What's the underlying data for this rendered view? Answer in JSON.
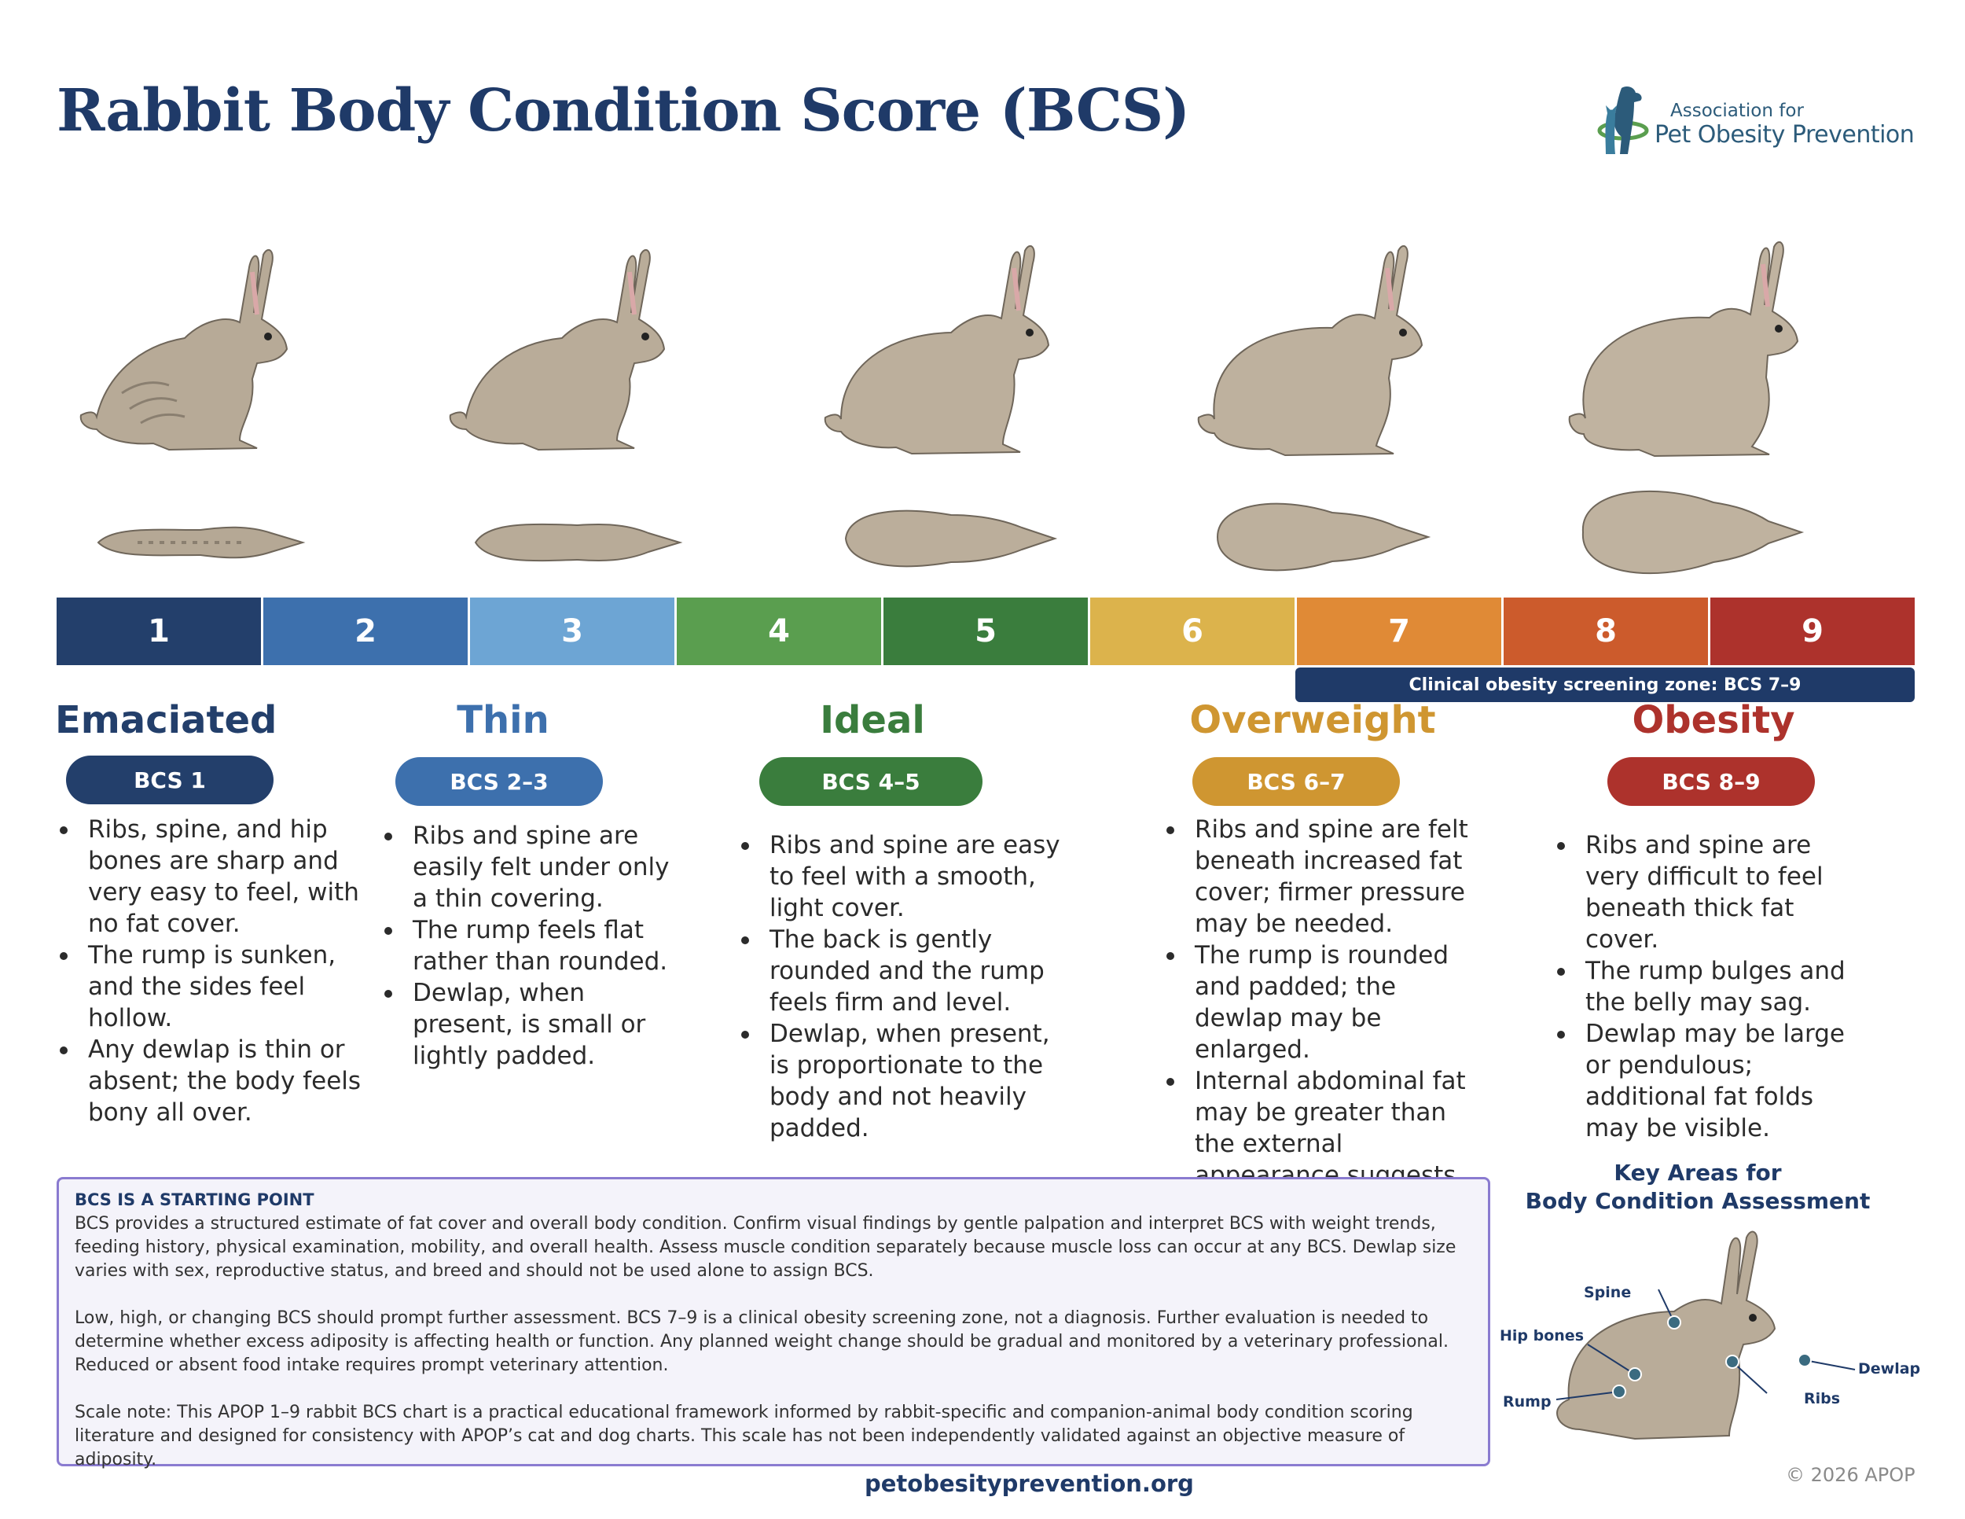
{
  "title": "Rabbit Body Condition Score (BCS)",
  "logo": {
    "line1": "Association for",
    "line2": "Pet Obesity Prevention"
  },
  "scale": [
    {
      "label": "1",
      "color": "#233f6b"
    },
    {
      "label": "2",
      "color": "#3d70ad"
    },
    {
      "label": "3",
      "color": "#6da5d4"
    },
    {
      "label": "4",
      "color": "#5a9e4f"
    },
    {
      "label": "5",
      "color": "#3a7d3d"
    },
    {
      "label": "6",
      "color": "#dcb34c"
    },
    {
      "label": "7",
      "color": "#e08a36"
    },
    {
      "label": "8",
      "color": "#cc5b2c"
    },
    {
      "label": "9",
      "color": "#ad322c"
    }
  ],
  "zone_banner": "Clinical obesity screening zone: BCS 7–9",
  "categories": [
    {
      "name": "Emaciated",
      "badge": "BCS 1",
      "color": "#233f6b",
      "bullets": [
        "Ribs, spine, and hip bones are sharp and very easy to feel, with no fat cover.",
        "The rump is sunken, and the sides feel hollow.",
        "Any dewlap is thin or absent; the body feels bony all over."
      ]
    },
    {
      "name": "Thin",
      "badge": "BCS 2–3",
      "color": "#3d70ad",
      "bullets": [
        "Ribs and spine are easily felt under only a thin covering.",
        "The rump feels flat rather than rounded.",
        "Dewlap, when present, is small or lightly padded."
      ]
    },
    {
      "name": "Ideal",
      "badge": "BCS 4–5",
      "color": "#3a7d3d",
      "bullets": [
        "Ribs and spine are easy to feel with a smooth, light cover.",
        "The back is gently rounded and the rump feels firm and level.",
        "Dewlap, when present, is proportionate to the body and not heavily padded."
      ]
    },
    {
      "name": "Overweight",
      "badge": "BCS 6–7",
      "color": "#cf9631",
      "bullets": [
        "Ribs and spine are felt beneath increased fat cover; firmer pressure may be needed.",
        "The rump is rounded and padded; the dewlap may be enlarged.",
        "Internal abdominal fat may be greater than the external appearance suggests."
      ]
    },
    {
      "name": "Obesity",
      "badge": "BCS 8–9",
      "color": "#ad322c",
      "bullets": [
        "Ribs and spine are very difficult to feel beneath thick fat cover.",
        "The rump bulges and the belly may sag.",
        "Dewlap may be large or pendulous; additional fat folds may be visible."
      ]
    }
  ],
  "note": {
    "title": "BCS IS A STARTING POINT",
    "p1": "BCS provides a structured estimate of fat cover and overall body condition. Confirm visual findings by gentle palpation and interpret BCS with weight trends, feeding history, physical examination, mobility, and overall health. Assess muscle condition separately because muscle loss can occur at any BCS. Dewlap size varies with sex, reproductive status, and breed and should not be used alone to assign BCS.",
    "p2": "Low, high, or changing BCS should prompt further assessment. BCS 7–9 is a clinical obesity screening zone, not a diagnosis. Further evaluation is needed to determine whether excess adiposity is affecting health or function. Any planned weight change should be gradual and monitored by a veterinary professional. Reduced or absent food intake requires prompt veterinary attention.",
    "p3": "Scale note: This APOP 1–9 rabbit BCS chart is a practical educational framework informed by rabbit-specific and companion-animal body condition scoring literature and designed for consistency with APOP’s cat and dog charts. This scale has not been independently validated against an objective measure of adiposity."
  },
  "key_areas": {
    "title_line1": "Key Areas for",
    "title_line2": "Body Condition Assessment",
    "labels": {
      "spine": "Spine",
      "hip_bones": "Hip bones",
      "rump": "Rump",
      "ribs": "Ribs",
      "dewlap": "Dewlap"
    }
  },
  "footer": {
    "website": "petobesityprevention.org",
    "copyright": "© 2026 APOP"
  },
  "icons": {
    "rabbit_side": "rabbit-side-icon",
    "rabbit_top": "rabbit-top-icon",
    "logo": "dog-cat-logo-icon"
  }
}
